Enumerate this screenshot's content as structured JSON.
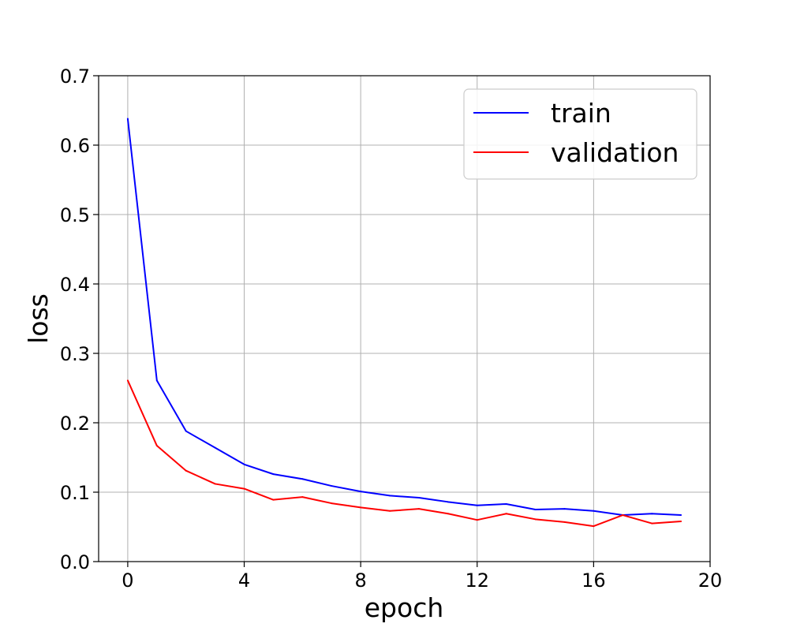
{
  "chart_data": {
    "type": "line",
    "x": [
      0,
      1,
      2,
      3,
      4,
      5,
      6,
      7,
      8,
      9,
      10,
      11,
      12,
      13,
      14,
      15,
      16,
      17,
      18,
      19
    ],
    "series": [
      {
        "name": "train",
        "color": "#0000ff",
        "values": [
          0.638,
          0.261,
          0.188,
          0.164,
          0.14,
          0.126,
          0.119,
          0.109,
          0.101,
          0.095,
          0.092,
          0.086,
          0.081,
          0.083,
          0.075,
          0.076,
          0.073,
          0.067,
          0.069,
          0.067
        ]
      },
      {
        "name": "validation",
        "color": "#ff0000",
        "values": [
          0.261,
          0.167,
          0.131,
          0.112,
          0.105,
          0.089,
          0.093,
          0.084,
          0.078,
          0.073,
          0.076,
          0.069,
          0.06,
          0.069,
          0.061,
          0.057,
          0.051,
          0.067,
          0.055,
          0.058
        ]
      }
    ],
    "xlabel": "epoch",
    "ylabel": "loss",
    "xlim": [
      -1,
      20
    ],
    "ylim": [
      0,
      0.7
    ],
    "xticks": [
      0,
      4,
      8,
      12,
      16,
      20
    ],
    "yticks": [
      0.0,
      0.1,
      0.2,
      0.3,
      0.4,
      0.5,
      0.6,
      0.7
    ],
    "xtick_labels": [
      "0",
      "4",
      "8",
      "12",
      "16",
      "20"
    ],
    "ytick_labels": [
      "0.0",
      "0.1",
      "0.2",
      "0.3",
      "0.4",
      "0.5",
      "0.6",
      "0.7"
    ],
    "grid": true,
    "legend_position": "top-right"
  }
}
